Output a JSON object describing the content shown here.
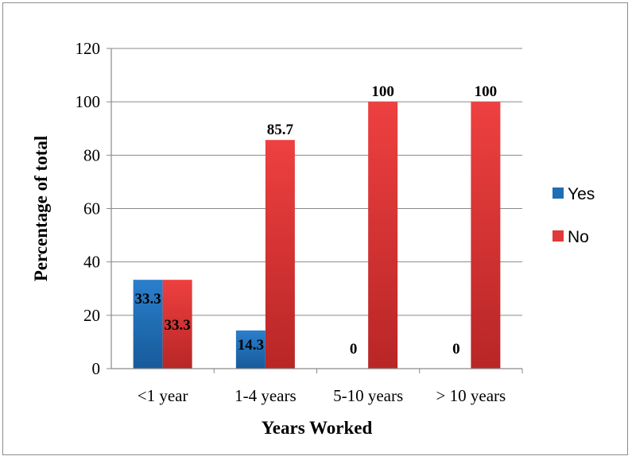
{
  "chart_data": {
    "type": "bar",
    "title": "",
    "xlabel": "Years Worked",
    "ylabel": "Percentage of total",
    "categories": [
      "<1 year",
      "1-4 years",
      "5-10 years",
      "> 10 years"
    ],
    "series": [
      {
        "name": "Yes",
        "values": [
          33.3,
          14.3,
          0,
          0
        ],
        "labels": [
          "33.3",
          "14.3",
          "0",
          "0"
        ],
        "color": "#1f6db5"
      },
      {
        "name": "No",
        "values": [
          33.3,
          85.7,
          100,
          100
        ],
        "labels": [
          "33.3",
          "85.7",
          "100",
          "100"
        ],
        "color": "#e03a3a"
      }
    ],
    "ylim": [
      0,
      120
    ],
    "yticks": [
      0,
      20,
      40,
      60,
      80,
      100,
      120
    ],
    "grid": true,
    "legend_position": "right"
  }
}
